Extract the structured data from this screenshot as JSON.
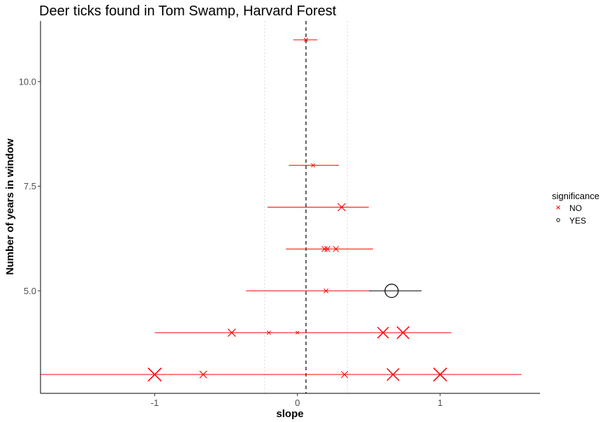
{
  "chart_data": {
    "type": "scatter",
    "title": "Deer ticks found in Tom Swamp, Harvard Forest",
    "xlabel": "slope",
    "ylabel": "Number of years in window",
    "xlim": [
      -1.8,
      1.7
    ],
    "ylim": [
      2.55,
      11.45
    ],
    "x_ticks": [
      -1,
      0,
      1
    ],
    "x_tick_labels": [
      "-1",
      "0",
      "1"
    ],
    "y_ticks": [
      5.0,
      7.5,
      10.0
    ],
    "y_tick_labels": [
      "5.0",
      "7.5",
      "10.0"
    ],
    "reference_lines": {
      "mean_slope": 0.06,
      "mean_minus_sd": -0.23,
      "mean_plus_sd": 0.35
    },
    "grid": false,
    "legend": {
      "title": "significance",
      "position": "right",
      "entries": [
        {
          "label": "NO",
          "marker": "x",
          "color": "#ff0000"
        },
        {
          "label": "YES",
          "marker": "circle",
          "color": "#000000"
        }
      ]
    },
    "series": [
      {
        "name": "NO",
        "color": "#ff0000",
        "marker": "x",
        "points": [
          {
            "x": 0.06,
            "y": 11,
            "xmin": -0.03,
            "xmax": 0.14,
            "size": 0.15
          },
          {
            "x": 0.11,
            "y": 8,
            "xmin": -0.06,
            "xmax": 0.29,
            "size": 0.15
          },
          {
            "x": 0.31,
            "y": 7,
            "xmin": -0.21,
            "xmax": 0.5,
            "size": 0.5
          },
          {
            "x": 0.19,
            "y": 6,
            "xmin": -0.08,
            "xmax": 0.53,
            "size": 0.3
          },
          {
            "x": 0.21,
            "y": 6,
            "xmin": -0.08,
            "xmax": 0.53,
            "size": 0.3
          },
          {
            "x": 0.27,
            "y": 6,
            "xmin": -0.08,
            "xmax": 0.53,
            "size": 0.3
          },
          {
            "x": 0.2,
            "y": 5,
            "xmin": -0.36,
            "xmax": 0.5,
            "size": 0.2
          },
          {
            "x": -0.46,
            "y": 4,
            "xmin": -1.0,
            "xmax": 1.08,
            "size": 0.5
          },
          {
            "x": -0.2,
            "y": 4,
            "xmin": -1.0,
            "xmax": 1.08,
            "size": 0.15
          },
          {
            "x": 0.0,
            "y": 4,
            "xmin": -1.0,
            "xmax": 1.08,
            "size": 0.1
          },
          {
            "x": 0.6,
            "y": 4,
            "xmin": -1.0,
            "xmax": 1.08,
            "size": 0.8
          },
          {
            "x": 0.74,
            "y": 4,
            "xmin": -1.0,
            "xmax": 1.08,
            "size": 0.9
          },
          {
            "x": -1.0,
            "y": 3,
            "xmin": -1.8,
            "xmax": 1.57,
            "size": 1.0
          },
          {
            "x": -0.66,
            "y": 3,
            "xmin": -1.8,
            "xmax": 1.57,
            "size": 0.45
          },
          {
            "x": 0.33,
            "y": 3,
            "xmin": -1.8,
            "xmax": 1.57,
            "size": 0.4
          },
          {
            "x": 0.67,
            "y": 3,
            "xmin": -1.8,
            "xmax": 1.57,
            "size": 0.9
          },
          {
            "x": 1.0,
            "y": 3,
            "xmin": -1.8,
            "xmax": 1.57,
            "size": 1.0
          }
        ]
      },
      {
        "name": "YES",
        "color": "#000000",
        "marker": "circle",
        "points": [
          {
            "x": 0.66,
            "y": 5,
            "xmin": 0.5,
            "xmax": 0.87,
            "size": 1.0
          }
        ]
      }
    ]
  }
}
